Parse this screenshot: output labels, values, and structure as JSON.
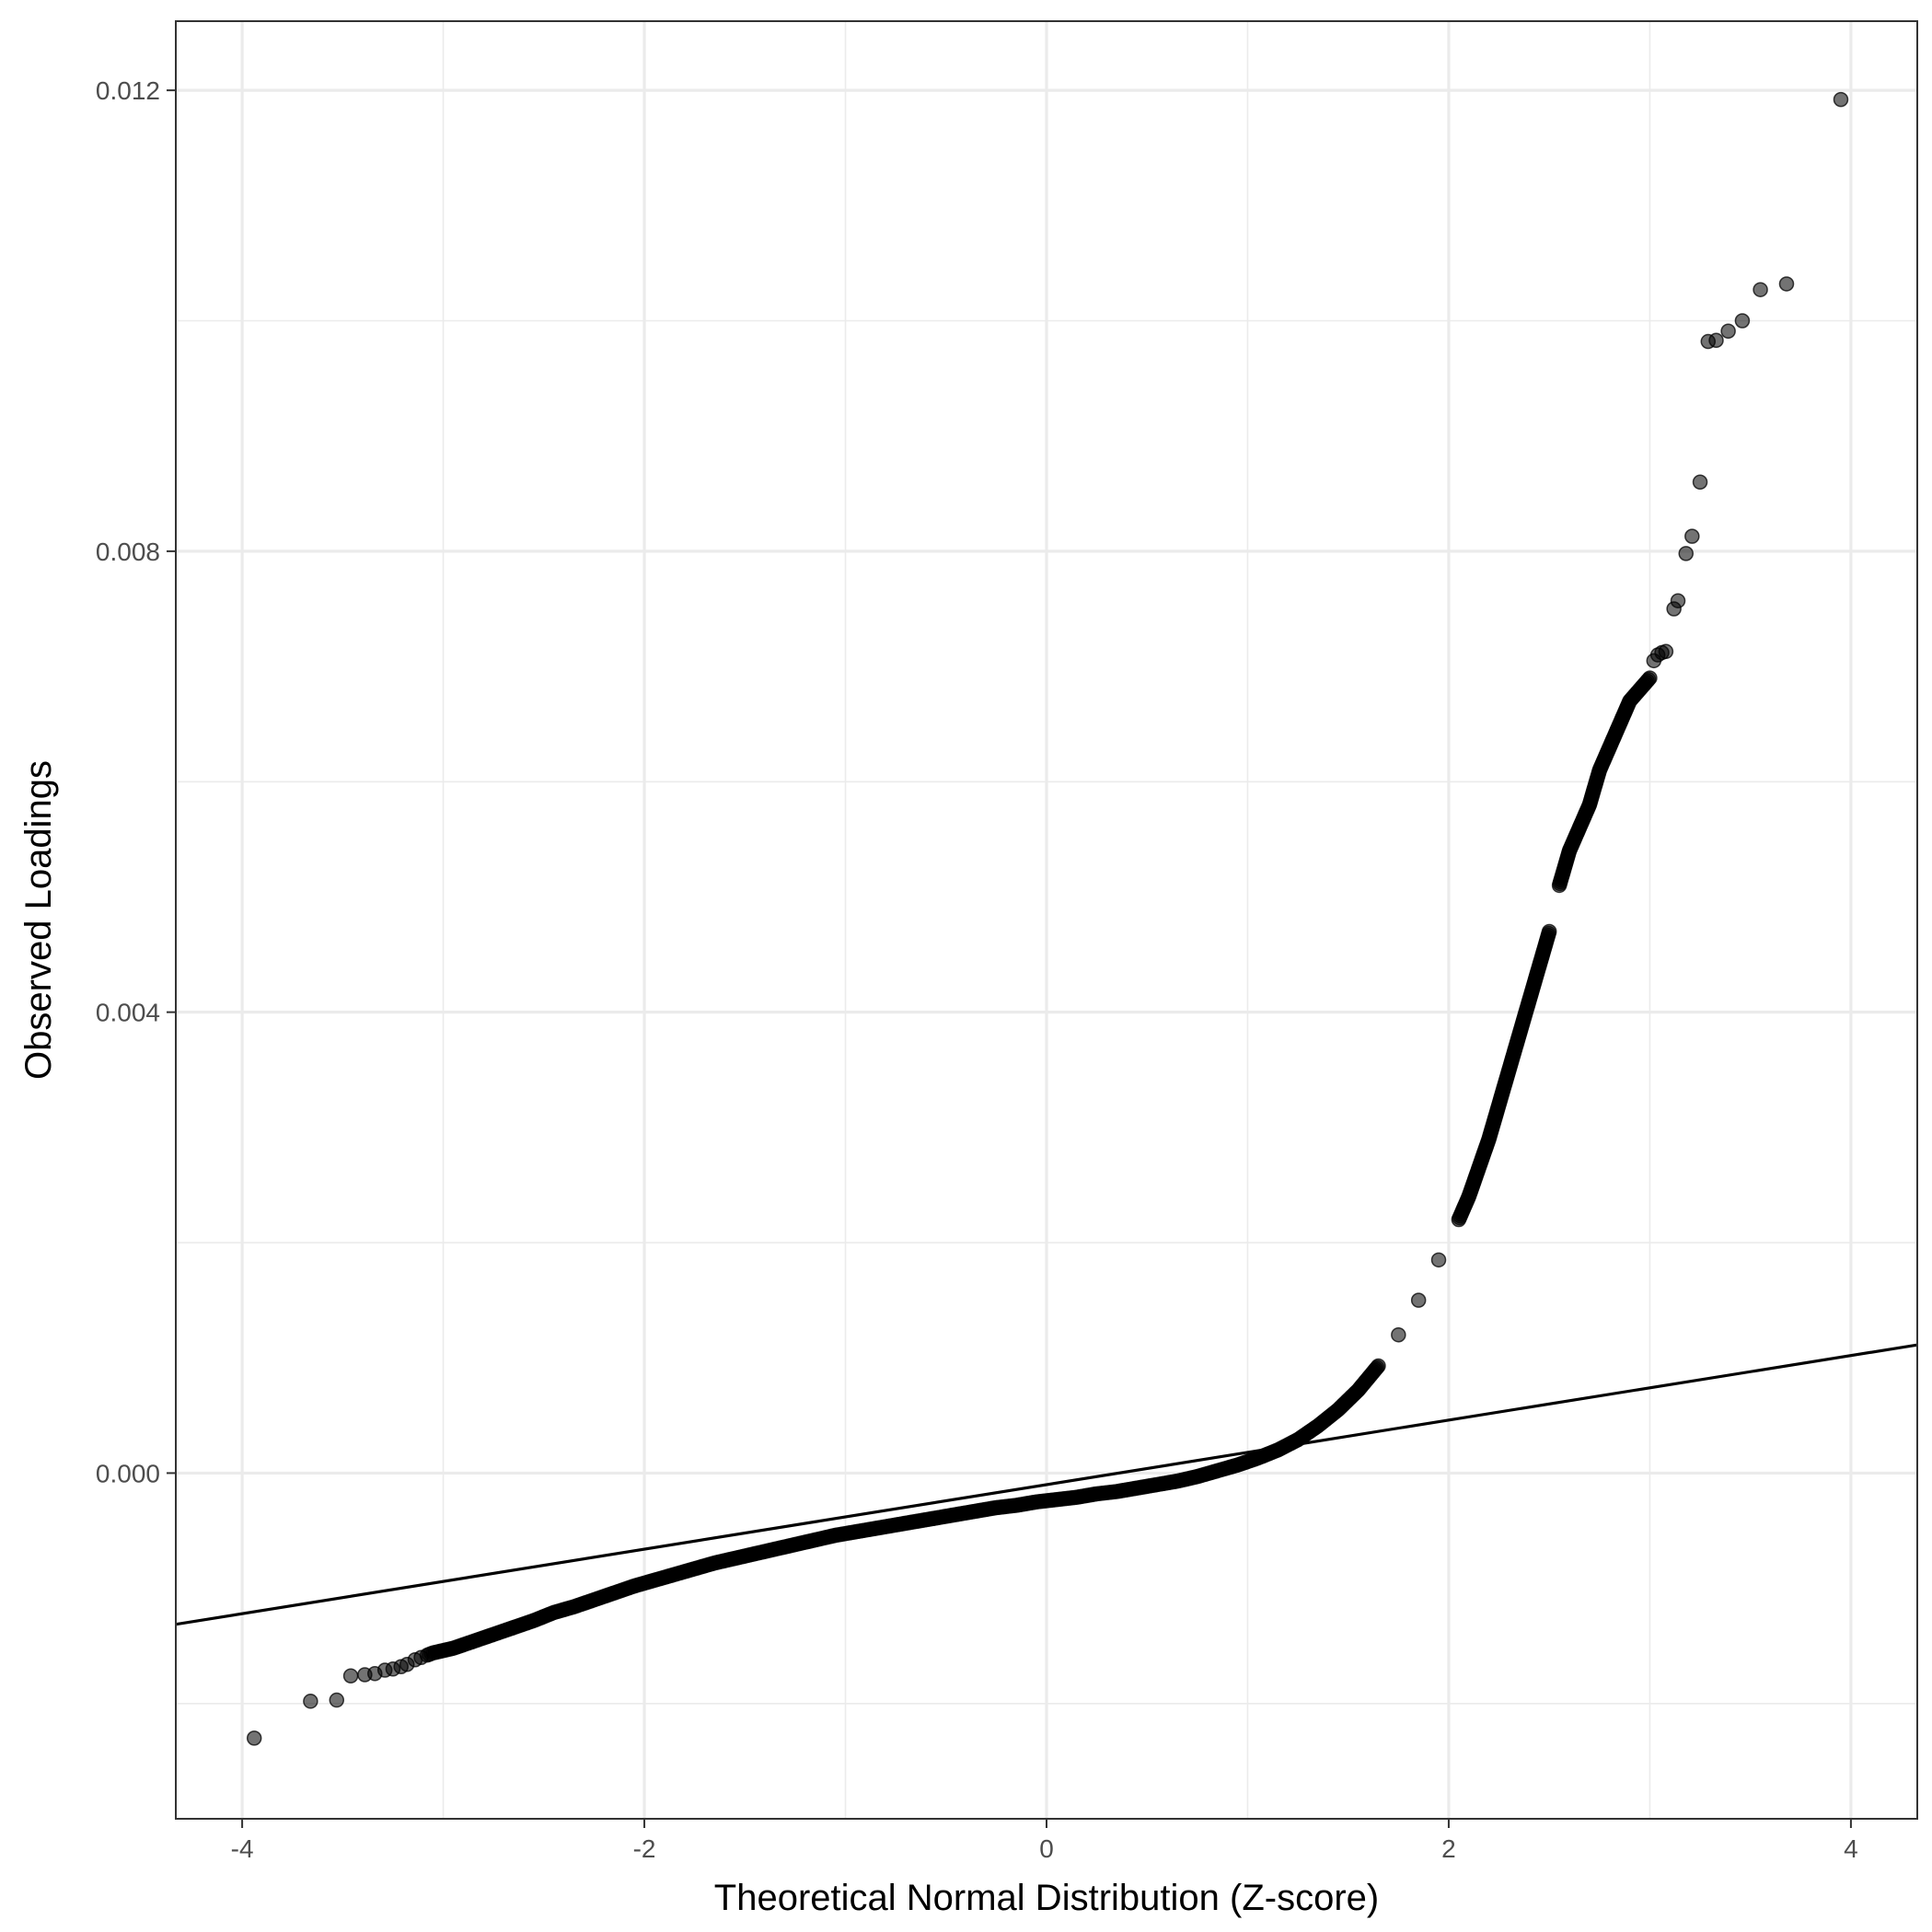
{
  "chart_data": {
    "type": "scatter",
    "title": "",
    "xlabel": "Theoretical Normal Distribution (Z-score)",
    "ylabel": "Observed Loadings",
    "xlim": [
      -4.33,
      4.33
    ],
    "ylim": [
      -0.003,
      0.0126
    ],
    "x_ticks": [
      -4,
      -2,
      0,
      2,
      4
    ],
    "x_tick_labels": [
      "-4",
      "-2",
      "0",
      "2",
      "4"
    ],
    "x_minor_ticks": [
      -3,
      -1,
      1,
      3
    ],
    "y_ticks": [
      0.0,
      0.004,
      0.008,
      0.012
    ],
    "y_tick_labels": [
      "0.000",
      "0.004",
      "0.008",
      "0.012"
    ],
    "y_minor_ticks": [
      -0.002,
      0.002,
      0.006,
      0.01
    ],
    "grid": true,
    "legend": "none",
    "reference_line": {
      "intercept": -0.0001,
      "slope": 0.00028
    },
    "point_color": "#000000",
    "point_alpha": 0.55,
    "series": [
      {
        "points": [
          [
            -3.94,
            -0.0023
          ],
          [
            -3.66,
            -0.00198
          ],
          [
            -3.53,
            -0.00197
          ],
          [
            -3.46,
            -0.00176
          ],
          [
            -3.39,
            -0.00175
          ],
          [
            -3.34,
            -0.00174
          ],
          [
            -3.29,
            -0.00171
          ],
          [
            -3.25,
            -0.0017
          ],
          [
            -3.21,
            -0.00168
          ],
          [
            -3.18,
            -0.00166
          ],
          [
            -3.14,
            -0.00162
          ],
          [
            -3.11,
            -0.0016
          ],
          [
            -3.08,
            -0.00158
          ],
          [
            -3.05,
            -0.00156
          ],
          [
            -2.95,
            -0.00152
          ],
          [
            -2.85,
            -0.00146
          ],
          [
            -2.75,
            -0.0014
          ],
          [
            -2.65,
            -0.00134
          ],
          [
            -2.55,
            -0.00128
          ],
          [
            -2.45,
            -0.00121
          ],
          [
            -2.35,
            -0.00116
          ],
          [
            -2.25,
            -0.0011
          ],
          [
            -2.15,
            -0.00104
          ],
          [
            -2.05,
            -0.00098
          ],
          [
            -1.95,
            -0.00093
          ],
          [
            -1.85,
            -0.00088
          ],
          [
            -1.75,
            -0.00083
          ],
          [
            -1.65,
            -0.00078
          ],
          [
            -1.55,
            -0.00074
          ],
          [
            -1.45,
            -0.0007
          ],
          [
            -1.35,
            -0.00066
          ],
          [
            -1.25,
            -0.00062
          ],
          [
            -1.15,
            -0.00058
          ],
          [
            -1.05,
            -0.00054
          ],
          [
            -0.95,
            -0.00051
          ],
          [
            -0.85,
            -0.00048
          ],
          [
            -0.75,
            -0.00045
          ],
          [
            -0.65,
            -0.00042
          ],
          [
            -0.55,
            -0.00039
          ],
          [
            -0.45,
            -0.00036
          ],
          [
            -0.35,
            -0.00033
          ],
          [
            -0.25,
            -0.0003
          ],
          [
            -0.15,
            -0.00028
          ],
          [
            -0.05,
            -0.00025
          ],
          [
            0.05,
            -0.00023
          ],
          [
            0.15,
            -0.00021
          ],
          [
            0.25,
            -0.00018
          ],
          [
            0.35,
            -0.00016
          ],
          [
            0.45,
            -0.00013
          ],
          [
            0.55,
            -0.0001
          ],
          [
            0.65,
            -7e-05
          ],
          [
            0.75,
            -3e-05
          ],
          [
            0.85,
            2e-05
          ],
          [
            0.95,
            7e-05
          ],
          [
            1.05,
            0.00013
          ],
          [
            1.15,
            0.0002
          ],
          [
            1.25,
            0.00029
          ],
          [
            1.35,
            0.00041
          ],
          [
            1.45,
            0.00055
          ],
          [
            1.55,
            0.00072
          ],
          [
            1.65,
            0.00093
          ],
          [
            1.75,
            0.0012
          ],
          [
            1.85,
            0.0015
          ],
          [
            1.95,
            0.00185
          ],
          [
            2.05,
            0.0022
          ],
          [
            2.1,
            0.0024
          ],
          [
            2.15,
            0.00265
          ],
          [
            2.2,
            0.0029
          ],
          [
            2.25,
            0.0032
          ],
          [
            2.3,
            0.0035
          ],
          [
            2.35,
            0.0038
          ],
          [
            2.4,
            0.0041
          ],
          [
            2.45,
            0.0044
          ],
          [
            2.5,
            0.0047
          ],
          [
            2.55,
            0.0051
          ],
          [
            2.6,
            0.0054
          ],
          [
            2.65,
            0.0056
          ],
          [
            2.7,
            0.0058
          ],
          [
            2.75,
            0.0061
          ],
          [
            2.8,
            0.0063
          ],
          [
            2.85,
            0.0065
          ],
          [
            2.9,
            0.0067
          ],
          [
            2.95,
            0.0068
          ],
          [
            3.0,
            0.0069
          ],
          [
            3.02,
            0.00705
          ],
          [
            3.04,
            0.0071
          ],
          [
            3.06,
            0.00712
          ],
          [
            3.08,
            0.00713
          ],
          [
            3.12,
            0.0075
          ],
          [
            3.14,
            0.00757
          ],
          [
            3.18,
            0.00798
          ],
          [
            3.21,
            0.00813
          ],
          [
            3.25,
            0.0086
          ],
          [
            3.29,
            0.00982
          ],
          [
            3.33,
            0.00983
          ],
          [
            3.39,
            0.00991
          ],
          [
            3.46,
            0.01
          ],
          [
            3.55,
            0.01027
          ],
          [
            3.68,
            0.01032
          ],
          [
            3.95,
            0.01192
          ]
        ]
      }
    ]
  }
}
